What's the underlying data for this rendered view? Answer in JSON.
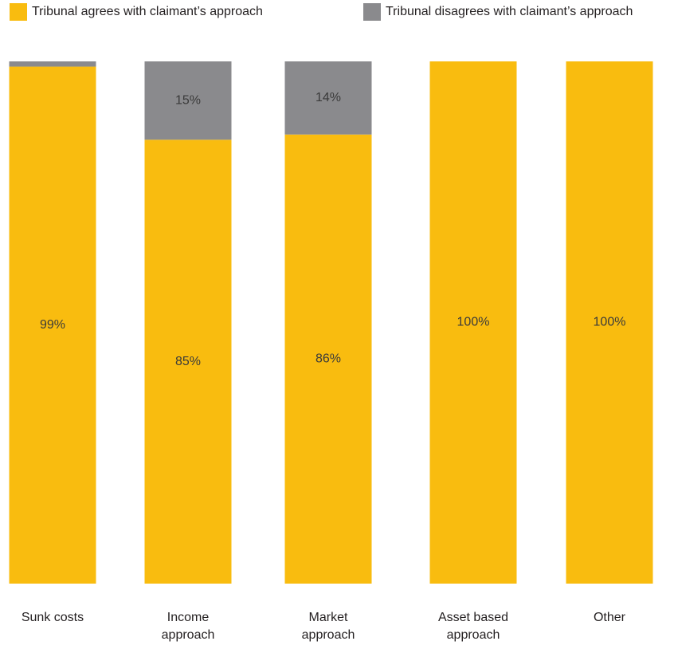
{
  "legend": {
    "agree": "Tribunal agrees with claimant’s approach",
    "disagree": "Tribunal disagrees with claimant’s approach"
  },
  "colors": {
    "agree": "#F9BC0F",
    "disagree": "#8A8A8D"
  },
  "chart_data": {
    "type": "bar",
    "stacked": true,
    "categories": [
      "Sunk costs",
      "Income approach",
      "Market approach",
      "Asset based approach",
      "Other"
    ],
    "category_lines": [
      [
        "Sunk costs"
      ],
      [
        "Income",
        "approach"
      ],
      [
        "Market",
        "approach"
      ],
      [
        "Asset based",
        "approach"
      ],
      [
        "Other"
      ]
    ],
    "series": [
      {
        "name": "Tribunal agrees with claimant’s approach",
        "values": [
          99,
          85,
          86,
          100,
          100
        ],
        "labels": [
          "99%",
          "85%",
          "86%",
          "100%",
          "100%"
        ]
      },
      {
        "name": "Tribunal disagrees with claimant’s approach",
        "values": [
          1,
          15,
          14,
          0,
          0
        ],
        "labels": [
          "",
          "15%",
          "14%",
          "",
          ""
        ]
      }
    ],
    "ylim": [
      0,
      100
    ],
    "grid": false,
    "legend_position": "top"
  }
}
